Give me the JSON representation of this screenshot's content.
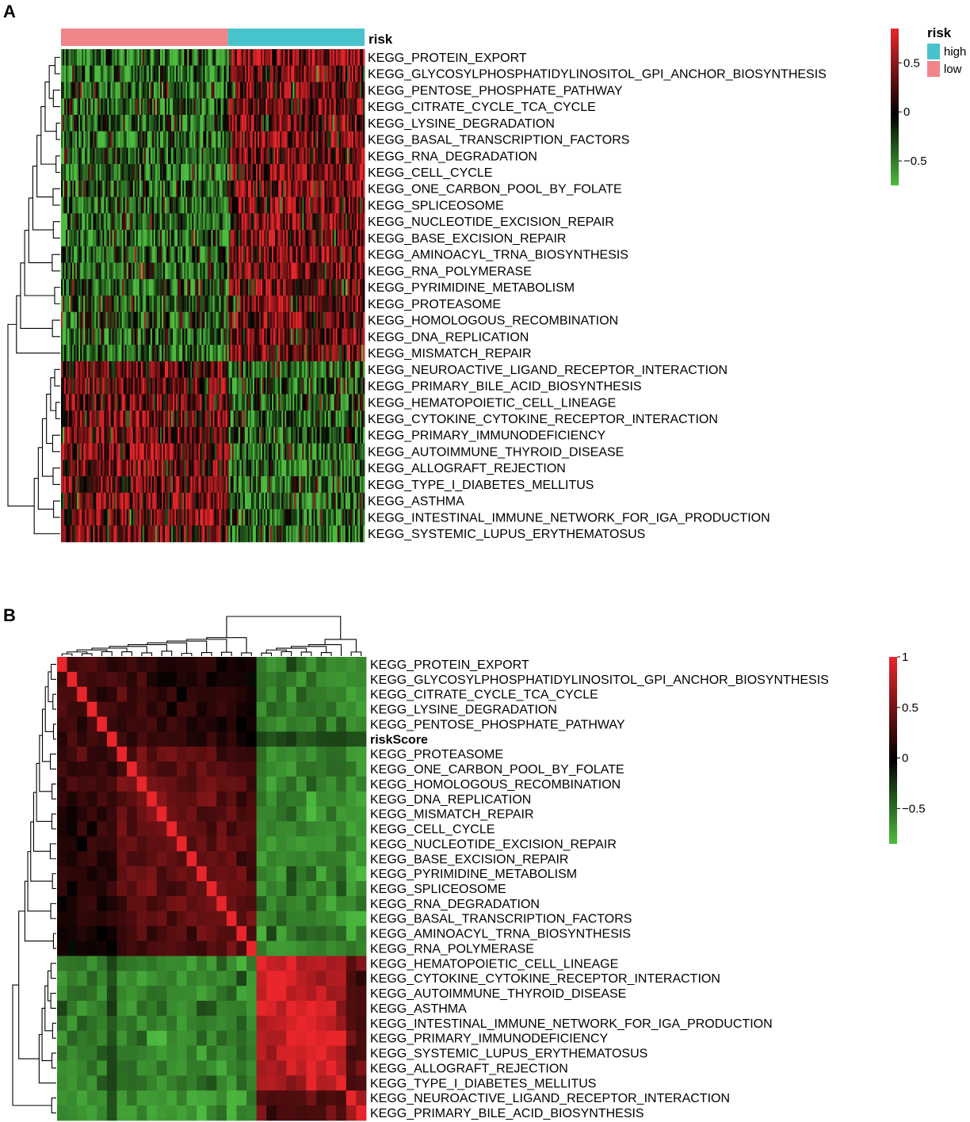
{
  "colors": {
    "low_value": "#4dbb3f",
    "mid_value": "#000000",
    "high_value": "#e8262b",
    "risk_high": "#47c3cc",
    "risk_low": "#f0868a"
  },
  "chart_data": [
    {
      "type": "heatmap",
      "panel": "A",
      "annotation_label": "risk",
      "annotation_groups": [
        {
          "name": "low",
          "fraction": 0.55
        },
        {
          "name": "high",
          "fraction": 0.45
        }
      ],
      "rows": [
        "KEGG_PROTEIN_EXPORT",
        "KEGG_GLYCOSYLPHOSPHATIDYLINOSITOL_GPI_ANCHOR_BIOSYNTHESIS",
        "KEGG_PENTOSE_PHOSPHATE_PATHWAY",
        "KEGG_CITRATE_CYCLE_TCA_CYCLE",
        "KEGG_LYSINE_DEGRADATION",
        "KEGG_BASAL_TRANSCRIPTION_FACTORS",
        "KEGG_RNA_DEGRADATION",
        "KEGG_CELL_CYCLE",
        "KEGG_ONE_CARBON_POOL_BY_FOLATE",
        "KEGG_SPLICEOSOME",
        "KEGG_NUCLEOTIDE_EXCISION_REPAIR",
        "KEGG_BASE_EXCISION_REPAIR",
        "KEGG_AMINOACYL_TRNA_BIOSYNTHESIS",
        "KEGG_RNA_POLYMERASE",
        "KEGG_PYRIMIDINE_METABOLISM",
        "KEGG_PROTEASOME",
        "KEGG_HOMOLOGOUS_RECOMBINATION",
        "KEGG_DNA_REPLICATION",
        "KEGG_MISMATCH_REPAIR",
        "KEGG_NEUROACTIVE_LIGAND_RECEPTOR_INTERACTION",
        "KEGG_PRIMARY_BILE_ACID_BIOSYNTHESIS",
        "KEGG_HEMATOPOIETIC_CELL_LINEAGE",
        "KEGG_CYTOKINE_CYTOKINE_RECEPTOR_INTERACTION",
        "KEGG_PRIMARY_IMMUNODEFICIENCY",
        "KEGG_AUTOIMMUNE_THYROID_DISEASE",
        "KEGG_ALLOGRAFT_REJECTION",
        "KEGG_TYPE_I_DIABETES_MELLITUS",
        "KEGG_ASTHMA",
        "KEGG_INTESTINAL_IMMUNE_NETWORK_FOR_IGA_PRODUCTION",
        "KEGG_SYSTEMIC_LUPUS_ERYTHEMATOSUS"
      ],
      "row_trend_low_vs_high": [
        -0.45,
        -0.45,
        -0.4,
        -0.4,
        -0.4,
        -0.4,
        -0.4,
        -0.4,
        -0.4,
        -0.4,
        -0.4,
        -0.4,
        -0.4,
        -0.35,
        -0.35,
        -0.25,
        -0.35,
        -0.35,
        -0.35,
        0.35,
        0.3,
        0.35,
        0.35,
        0.3,
        0.4,
        0.4,
        0.4,
        0.4,
        0.4,
        0.4
      ],
      "color_scale": {
        "min": -0.75,
        "max": 0.85,
        "ticks": [
          0.5,
          0,
          -0.5
        ],
        "tick_labels": [
          "0.5",
          "0",
          "−0.5"
        ]
      },
      "legend": {
        "title": "risk",
        "entries": [
          "high",
          "low"
        ]
      }
    },
    {
      "type": "heatmap",
      "panel": "B",
      "rows": [
        "KEGG_PROTEIN_EXPORT",
        "KEGG_GLYCOSYLPHOSPHATIDYLINOSITOL_GPI_ANCHOR_BIOSYNTHESIS",
        "KEGG_CITRATE_CYCLE_TCA_CYCLE",
        "KEGG_LYSINE_DEGRADATION",
        "KEGG_PENTOSE_PHOSPHATE_PATHWAY",
        "riskScore",
        "KEGG_PROTEASOME",
        "KEGG_ONE_CARBON_POOL_BY_FOLATE",
        "KEGG_HOMOLOGOUS_RECOMBINATION",
        "KEGG_DNA_REPLICATION",
        "KEGG_MISMATCH_REPAIR",
        "KEGG_CELL_CYCLE",
        "KEGG_NUCLEOTIDE_EXCISION_REPAIR",
        "KEGG_BASE_EXCISION_REPAIR",
        "KEGG_PYRIMIDINE_METABOLISM",
        "KEGG_SPLICEOSOME",
        "KEGG_RNA_DEGRADATION",
        "KEGG_BASAL_TRANSCRIPTION_FACTORS",
        "KEGG_AMINOACYL_TRNA_BIOSYNTHESIS",
        "KEGG_RNA_POLYMERASE",
        "KEGG_HEMATOPOIETIC_CELL_LINEAGE",
        "KEGG_CYTOKINE_CYTOKINE_RECEPTOR_INTERACTION",
        "KEGG_AUTOIMMUNE_THYROID_DISEASE",
        "KEGG_ASTHMA",
        "KEGG_INTESTINAL_IMMUNE_NETWORK_FOR_IGA_PRODUCTION",
        "KEGG_PRIMARY_IMMUNODEFICIENCY",
        "KEGG_SYSTEMIC_LUPUS_ERYTHEMATOSUS",
        "KEGG_ALLOGRAFT_REJECTION",
        "KEGG_TYPE_I_DIABETES_MELLITUS",
        "KEGG_NEUROACTIVE_LIGAND_RECEPTOR_INTERACTION",
        "KEGG_PRIMARY_BILE_ACID_BIOSYNTHESIS"
      ],
      "bold_rows": [
        "riskScore"
      ],
      "cluster_sizes": [
        20,
        9,
        2
      ],
      "within_cluster_correlation": [
        0.45,
        0.85,
        0.6
      ],
      "between_cluster_correlation": [
        [
          null,
          -0.6,
          -0.7
        ],
        [
          -0.6,
          null,
          0.35
        ],
        [
          -0.7,
          0.35,
          null
        ]
      ],
      "color_scale": {
        "min": -0.85,
        "max": 1.0,
        "ticks": [
          1,
          0.5,
          0,
          -0.5
        ],
        "tick_labels": [
          "1",
          "0.5",
          "0",
          "−0.5"
        ]
      }
    }
  ]
}
